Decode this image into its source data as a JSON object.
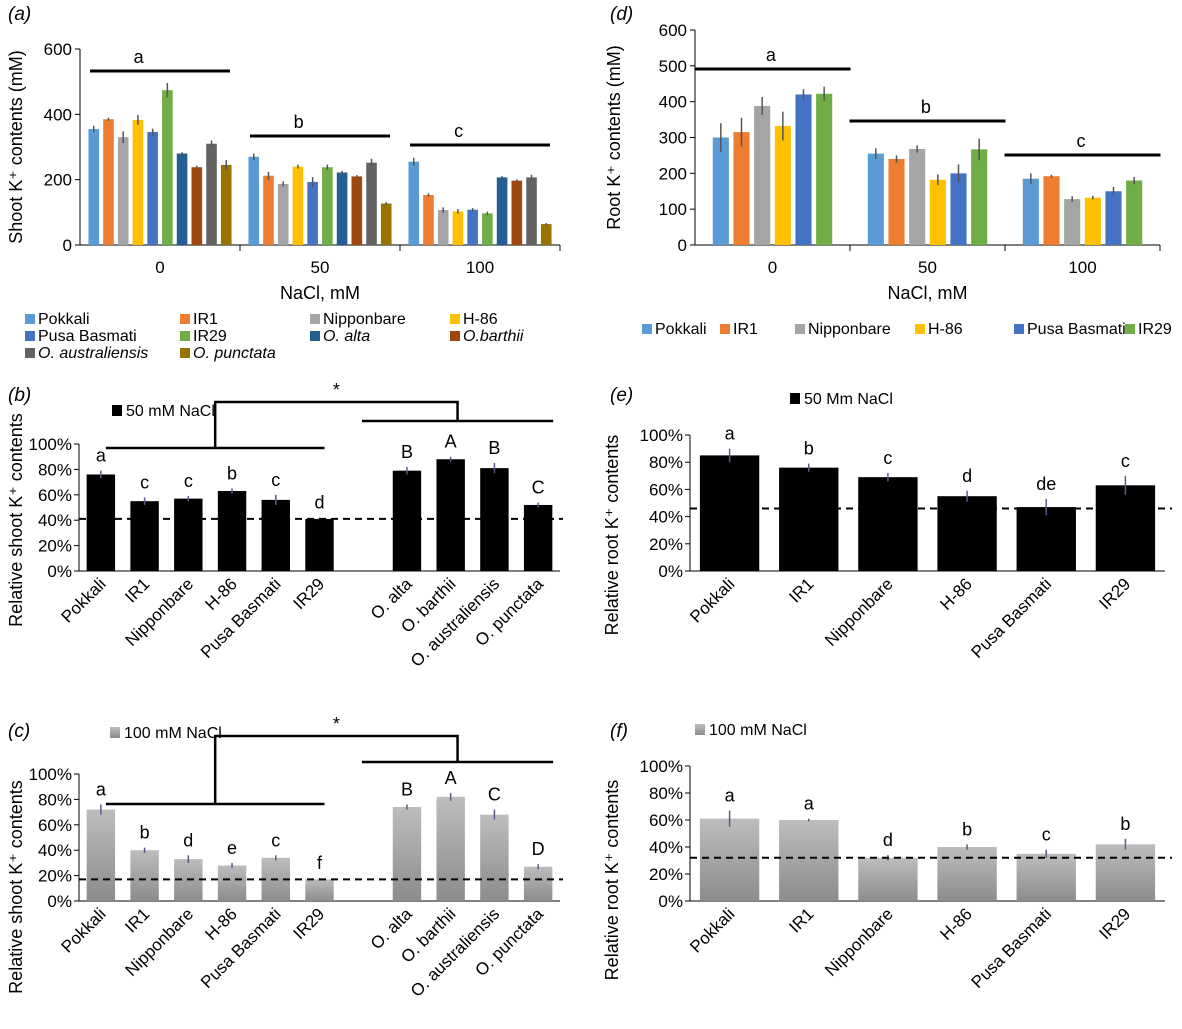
{
  "colors": {
    "Pokkali": "#5B9BD5",
    "IR1": "#ED7D31",
    "Nipponbare": "#A5A5A5",
    "H-86": "#FFC000",
    "Pusa Basmati": "#4472C4",
    "IR29": "#70AD47",
    "O. alta": "#255E91",
    "O.barthii": "#9E480E",
    "O. australiensis": "#636363",
    "O. punctata": "#997300",
    "black_bar": "#000000",
    "gray_bar": "#A6A6A6",
    "errbar": "#5a5a8a"
  },
  "chart_data": [
    {
      "id": "a",
      "panel_label": "(a)",
      "type": "bar",
      "ylabel": "Shoot K⁺ contents (mM)",
      "xlabel": "NaCl, mM",
      "categories": [
        "0",
        "50",
        "100"
      ],
      "ylim": [
        0,
        600
      ],
      "yticks": [
        "0",
        "200",
        "400",
        "600"
      ],
      "group_letters": [
        "a",
        "b",
        "c"
      ],
      "series": [
        {
          "name": "Pokkali",
          "values": [
            355,
            270,
            255
          ],
          "err": [
            10,
            10,
            12
          ]
        },
        {
          "name": "IR1",
          "values": [
            385,
            212,
            153
          ],
          "err": [
            5,
            12,
            5
          ]
        },
        {
          "name": "Nipponbare",
          "values": [
            330,
            187,
            107
          ],
          "err": [
            18,
            8,
            8
          ]
        },
        {
          "name": "H-86",
          "values": [
            383,
            240,
            103
          ],
          "err": [
            15,
            6,
            7
          ]
        },
        {
          "name": "Pusa Basmati",
          "values": [
            346,
            193,
            108
          ],
          "err": [
            10,
            15,
            5
          ]
        },
        {
          "name": "IR29",
          "values": [
            474,
            238,
            97
          ],
          "err": [
            22,
            8,
            5
          ]
        },
        {
          "name": "O. alta",
          "values": [
            280,
            222,
            207
          ],
          "err": [
            4,
            5,
            4
          ]
        },
        {
          "name": "O.barthii",
          "values": [
            238,
            210,
            197
          ],
          "err": [
            5,
            4,
            4
          ]
        },
        {
          "name": "O. australiensis",
          "values": [
            310,
            252,
            207
          ],
          "err": [
            10,
            12,
            8
          ]
        },
        {
          "name": "O. punctata",
          "values": [
            245,
            127,
            64
          ],
          "err": [
            15,
            4,
            3
          ]
        }
      ]
    },
    {
      "id": "d",
      "panel_label": "(d)",
      "type": "bar",
      "ylabel": "Root K⁺ contents (mM)",
      "xlabel": "NaCl, mM",
      "categories": [
        "0",
        "50",
        "100"
      ],
      "ylim": [
        0,
        600
      ],
      "yticks": [
        "0",
        "100",
        "200",
        "300",
        "400",
        "500",
        "600"
      ],
      "group_letters": [
        "a",
        "b",
        "c"
      ],
      "series": [
        {
          "name": "Pokkali",
          "values": [
            300,
            255,
            185
          ],
          "err": [
            40,
            15,
            15
          ]
        },
        {
          "name": "IR1",
          "values": [
            315,
            240,
            192
          ],
          "err": [
            40,
            10,
            4
          ]
        },
        {
          "name": "Nipponbare",
          "values": [
            388,
            268,
            128
          ],
          "err": [
            25,
            10,
            8
          ]
        },
        {
          "name": "H-86",
          "values": [
            332,
            182,
            132
          ],
          "err": [
            40,
            15,
            5
          ]
        },
        {
          "name": "Pusa Basmati",
          "values": [
            420,
            200,
            150
          ],
          "err": [
            15,
            25,
            12
          ]
        },
        {
          "name": "IR29",
          "values": [
            422,
            267,
            180
          ],
          "err": [
            20,
            30,
            10
          ]
        }
      ]
    },
    {
      "id": "b",
      "panel_label": "(b)",
      "type": "bar",
      "legend": "50 mM NaCl",
      "ylabel": "Relative shoot K⁺ contents",
      "categories": [
        "Pokkali",
        "IR1",
        "Nipponbare",
        "H-86",
        "Pusa Basmati",
        "IR29",
        "",
        "O. alta",
        "O. barthii",
        "O. australiensis",
        "O. punctata"
      ],
      "values": [
        76,
        55,
        57,
        63,
        56,
        41,
        null,
        79,
        88,
        81,
        52
      ],
      "err": [
        3,
        3,
        2,
        2,
        4,
        1,
        0,
        3,
        2,
        4,
        2
      ],
      "letters": [
        "a",
        "c",
        "c",
        "b",
        "c",
        "d",
        "",
        "B",
        "A",
        "B",
        "C"
      ],
      "ylim": [
        0,
        100
      ],
      "yticks": [
        "0%",
        "20%",
        "40%",
        "60%",
        "80%",
        "100%"
      ],
      "dashed_line": 41,
      "star": "*"
    },
    {
      "id": "e",
      "panel_label": "(e)",
      "type": "bar",
      "legend": "50 Mm NaCl",
      "ylabel": "Relative root K⁺ contents",
      "categories": [
        "Pokkali",
        "IR1",
        "Nipponbare",
        "H-86",
        "Pusa Basmati",
        "IR29"
      ],
      "values": [
        85,
        76,
        69,
        55,
        47,
        63
      ],
      "err": [
        5,
        3,
        3,
        4,
        6,
        7
      ],
      "letters": [
        "a",
        "b",
        "c",
        "d",
        "de",
        "c"
      ],
      "ylim": [
        0,
        100
      ],
      "yticks": [
        "0%",
        "20%",
        "40%",
        "60%",
        "80%",
        "100%"
      ],
      "dashed_line": 46
    },
    {
      "id": "c",
      "panel_label": "(c)",
      "type": "bar",
      "legend": "100 mM NaCl",
      "ylabel": "Relative shoot K⁺ contents",
      "categories": [
        "Pokkali",
        "IR1",
        "Nipponbare",
        "H-86",
        "Pusa Basmati",
        "IR29",
        "",
        "O. alta",
        "O. barthii",
        "O. australiensis",
        "O. punctata"
      ],
      "values": [
        72,
        40,
        33,
        28,
        34,
        17,
        null,
        74,
        82,
        68,
        27
      ],
      "err": [
        4,
        2,
        3,
        2,
        2,
        1,
        0,
        2,
        3,
        4,
        2
      ],
      "letters": [
        "a",
        "b",
        "d",
        "e",
        "c",
        "f",
        "",
        "B",
        "A",
        "C",
        "D"
      ],
      "ylim": [
        0,
        100
      ],
      "yticks": [
        "0%",
        "20%",
        "40%",
        "60%",
        "80%",
        "100%"
      ],
      "dashed_line": 17,
      "star": "*"
    },
    {
      "id": "f",
      "panel_label": "(f)",
      "type": "bar",
      "legend": "100 mM NaCl",
      "ylabel": "Relative root K⁺ contents",
      "categories": [
        "Pokkali",
        "IR1",
        "Nipponbare",
        "H-86",
        "Pusa Basmati",
        "IR29"
      ],
      "values": [
        61,
        60,
        32,
        40,
        35,
        42
      ],
      "err": [
        6,
        1,
        2,
        2,
        3,
        4
      ],
      "letters": [
        "a",
        "a",
        "d",
        "b",
        "c",
        "b"
      ],
      "ylim": [
        0,
        100
      ],
      "yticks": [
        "0%",
        "20%",
        "40%",
        "60%",
        "80%",
        "100%"
      ],
      "dashed_line": 32
    }
  ]
}
